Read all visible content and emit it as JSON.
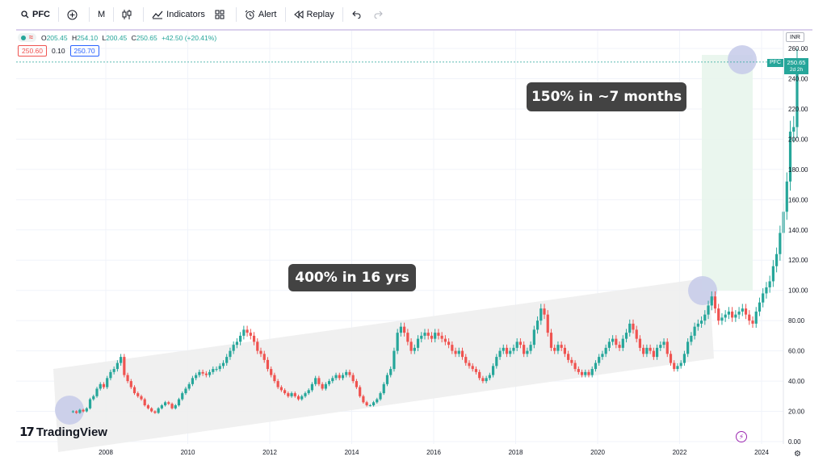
{
  "toolbar": {
    "symbol": "PFC",
    "interval": "M",
    "indicators_label": "Indicators",
    "alert_label": "Alert",
    "replay_label": "Replay"
  },
  "legend": {
    "open_label": "O",
    "open": "205.45",
    "high_label": "H",
    "high": "254.10",
    "low_label": "L",
    "low": "200.45",
    "close_label": "C",
    "close": "250.65",
    "change": "+42.50 (+20.41%)",
    "bid": "250.60",
    "spread": "0.10",
    "ask": "250.70"
  },
  "currency": "INR",
  "price_badge": {
    "symbol": "PFC",
    "price": "250.65",
    "countdown": "2d 2h"
  },
  "annotations": {
    "recent": "150% in ~7 months",
    "long_term": "400% in 16 yrs"
  },
  "logo_text": "TradingView",
  "colors": {
    "up": "#26a69a",
    "down": "#ef5350",
    "channel": "#ededed",
    "highlight_zone": "#e8f5ec",
    "circle": "#c5cae9"
  },
  "chart_data": {
    "type": "candlestick",
    "symbol": "PFC",
    "interval": "monthly",
    "ylim": [
      0,
      260
    ],
    "y_ticks": [
      "0.00",
      "20.00",
      "40.00",
      "60.00",
      "80.00",
      "100.00",
      "120.00",
      "140.00",
      "160.00",
      "180.00",
      "200.00",
      "220.00",
      "240.00",
      "260.00"
    ],
    "x_ticks": [
      "2008",
      "2010",
      "2012",
      "2014",
      "2016",
      "2018",
      "2020",
      "2022",
      "2024"
    ],
    "close_series": {
      "start": "2007.2",
      "step_months": 1,
      "values": [
        20,
        19,
        21,
        20,
        22,
        28,
        30,
        35,
        38,
        36,
        42,
        46,
        48,
        52,
        56,
        44,
        40,
        36,
        32,
        30,
        28,
        24,
        22,
        20,
        19,
        22,
        24,
        26,
        25,
        22,
        24,
        28,
        32,
        35,
        38,
        42,
        44,
        46,
        45,
        44,
        46,
        48,
        48,
        50,
        52,
        56,
        60,
        64,
        66,
        70,
        74,
        72,
        70,
        66,
        60,
        58,
        54,
        48,
        44,
        40,
        36,
        34,
        32,
        30,
        32,
        30,
        28,
        30,
        32,
        34,
        38,
        42,
        38,
        35,
        38,
        40,
        42,
        44,
        42,
        44,
        46,
        44,
        40,
        36,
        30,
        26,
        24,
        24,
        26,
        28,
        32,
        38,
        44,
        48,
        60,
        72,
        76,
        72,
        66,
        60,
        62,
        68,
        70,
        72,
        70,
        68,
        72,
        70,
        68,
        66,
        64,
        60,
        58,
        60,
        56,
        52,
        50,
        48,
        46,
        42,
        40,
        42,
        44,
        50,
        56,
        60,
        62,
        58,
        60,
        62,
        66,
        64,
        58,
        60,
        64,
        74,
        80,
        88,
        84,
        72,
        62,
        60,
        64,
        62,
        58,
        54,
        52,
        48,
        46,
        44,
        46,
        44,
        48,
        52,
        56,
        58,
        62,
        66,
        68,
        64,
        62,
        68,
        72,
        78,
        74,
        68,
        62,
        58,
        62,
        60,
        56,
        62,
        64,
        66,
        58,
        52,
        48,
        50,
        52,
        58,
        66,
        70,
        76,
        78,
        80,
        84,
        90,
        96,
        88,
        80,
        82,
        84,
        86,
        82,
        84,
        86,
        88,
        84,
        80,
        78,
        86,
        92,
        98,
        102,
        106,
        116,
        124,
        138,
        152,
        172,
        205,
        208,
        251
      ]
    }
  }
}
